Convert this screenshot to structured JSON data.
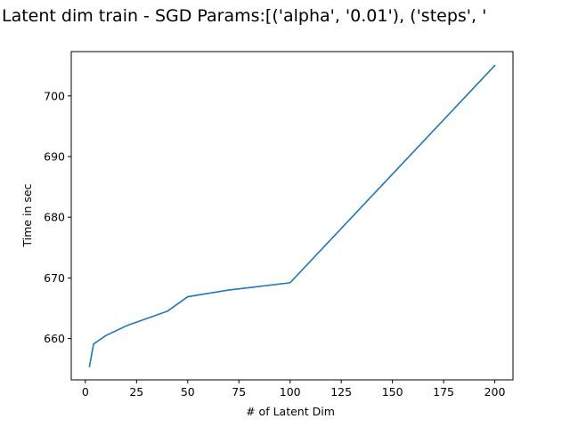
{
  "chart_data": {
    "type": "line",
    "title": "Latent dim train - SGD Params:[('alpha', '0.01'), ('steps', '",
    "xlabel": "# of Latent Dim",
    "ylabel": "Time in sec",
    "xlim": [
      -6.9,
      208.9
    ],
    "ylim": [
      653.2,
      707.3
    ],
    "xticks": [
      0,
      25,
      50,
      75,
      100,
      125,
      150,
      175,
      200
    ],
    "xtick_labels": [
      "0",
      "25",
      "50",
      "75",
      "100",
      "125",
      "150",
      "175",
      "200"
    ],
    "yticks": [
      660,
      670,
      680,
      690,
      700
    ],
    "ytick_labels": [
      "660",
      "670",
      "680",
      "690",
      "700"
    ],
    "grid": false,
    "series": [
      {
        "color": "#1f77b4",
        "x": [
          2,
          4,
          10,
          20,
          40,
          50,
          70,
          100,
          200
        ],
        "y": [
          655.4,
          659.1,
          660.5,
          662.1,
          664.5,
          666.9,
          668.0,
          669.2,
          705.0
        ]
      }
    ]
  }
}
